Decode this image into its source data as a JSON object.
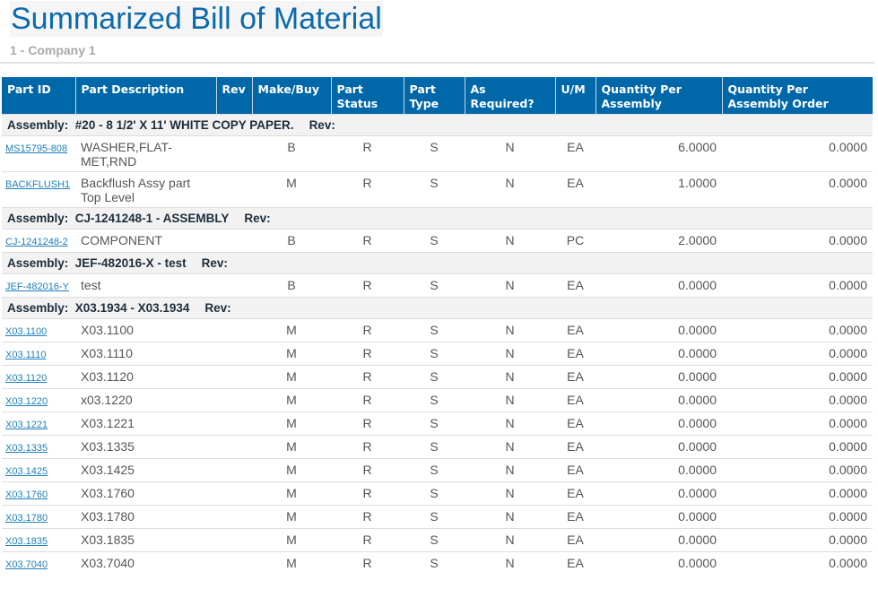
{
  "page": {
    "title": "Summarized Bill of Material",
    "company": "1 - Company 1"
  },
  "table": {
    "columns": [
      "Part ID",
      "Part Description",
      "Rev",
      "Make/Buy",
      "Part Status",
      "Part Type",
      "As Required?",
      "U/M",
      "Quantity Per Assembly",
      "Quantity Per Assembly Order"
    ],
    "assembly_label": "Assembly:",
    "rev_label": "Rev:",
    "groups": [
      {
        "assembly": "#20 - 8 1/2' X 11' WHITE COPY PAPER.",
        "rows": [
          {
            "part_id": "MS15795-808",
            "description": "WASHER,FLAT-MET,RND",
            "rev": "",
            "make_buy": "B",
            "status": "R",
            "type": "S",
            "as_required": "N",
            "um": "EA",
            "qty_assembly": "6.0000",
            "qty_order": "0.0000"
          },
          {
            "part_id": "BACKFLUSH1",
            "description": "Backflush Assy part Top Level",
            "rev": "",
            "make_buy": "M",
            "status": "R",
            "type": "S",
            "as_required": "N",
            "um": "EA",
            "qty_assembly": "1.0000",
            "qty_order": "0.0000"
          }
        ]
      },
      {
        "assembly": "CJ-1241248-1 - ASSEMBLY",
        "rows": [
          {
            "part_id": "CJ-1241248-2",
            "description": "COMPONENT",
            "rev": "",
            "make_buy": "B",
            "status": "R",
            "type": "S",
            "as_required": "N",
            "um": "PC",
            "qty_assembly": "2.0000",
            "qty_order": "0.0000"
          }
        ]
      },
      {
        "assembly": "JEF-482016-X - test",
        "rows": [
          {
            "part_id": "JEF-482016-Y",
            "description": "test",
            "rev": "",
            "make_buy": "B",
            "status": "R",
            "type": "S",
            "as_required": "N",
            "um": "EA",
            "qty_assembly": "0.0000",
            "qty_order": "0.0000"
          }
        ]
      },
      {
        "assembly": "X03.1934 - X03.1934",
        "rows": [
          {
            "part_id": "X03.1100",
            "description": "X03.1100",
            "rev": "",
            "make_buy": "M",
            "status": "R",
            "type": "S",
            "as_required": "N",
            "um": "EA",
            "qty_assembly": "0.0000",
            "qty_order": "0.0000"
          },
          {
            "part_id": "X03.1110",
            "description": "X03.1110",
            "rev": "",
            "make_buy": "M",
            "status": "R",
            "type": "S",
            "as_required": "N",
            "um": "EA",
            "qty_assembly": "0.0000",
            "qty_order": "0.0000"
          },
          {
            "part_id": "X03.1120",
            "description": "X03.1120",
            "rev": "",
            "make_buy": "M",
            "status": "R",
            "type": "S",
            "as_required": "N",
            "um": "EA",
            "qty_assembly": "0.0000",
            "qty_order": "0.0000"
          },
          {
            "part_id": "X03.1220",
            "description": "x03.1220",
            "rev": "",
            "make_buy": "M",
            "status": "R",
            "type": "S",
            "as_required": "N",
            "um": "EA",
            "qty_assembly": "0.0000",
            "qty_order": "0.0000"
          },
          {
            "part_id": "X03.1221",
            "description": "X03.1221",
            "rev": "",
            "make_buy": "M",
            "status": "R",
            "type": "S",
            "as_required": "N",
            "um": "EA",
            "qty_assembly": "0.0000",
            "qty_order": "0.0000"
          },
          {
            "part_id": "X03.1335",
            "description": "X03.1335",
            "rev": "",
            "make_buy": "M",
            "status": "R",
            "type": "S",
            "as_required": "N",
            "um": "EA",
            "qty_assembly": "0.0000",
            "qty_order": "0.0000"
          },
          {
            "part_id": "X03.1425",
            "description": "X03.1425",
            "rev": "",
            "make_buy": "M",
            "status": "R",
            "type": "S",
            "as_required": "N",
            "um": "EA",
            "qty_assembly": "0.0000",
            "qty_order": "0.0000"
          },
          {
            "part_id": "X03.1760",
            "description": "X03.1760",
            "rev": "",
            "make_buy": "M",
            "status": "R",
            "type": "S",
            "as_required": "N",
            "um": "EA",
            "qty_assembly": "0.0000",
            "qty_order": "0.0000"
          },
          {
            "part_id": "X03.1780",
            "description": "X03.1780",
            "rev": "",
            "make_buy": "M",
            "status": "R",
            "type": "S",
            "as_required": "N",
            "um": "EA",
            "qty_assembly": "0.0000",
            "qty_order": "0.0000"
          },
          {
            "part_id": "X03.1835",
            "description": "X03.1835",
            "rev": "",
            "make_buy": "M",
            "status": "R",
            "type": "S",
            "as_required": "N",
            "um": "EA",
            "qty_assembly": "0.0000",
            "qty_order": "0.0000"
          },
          {
            "part_id": "X03.7040",
            "description": "X03.7040",
            "rev": "",
            "make_buy": "M",
            "status": "R",
            "type": "S",
            "as_required": "N",
            "um": "EA",
            "qty_assembly": "0.0000",
            "qty_order": "0.0000"
          }
        ]
      }
    ]
  }
}
